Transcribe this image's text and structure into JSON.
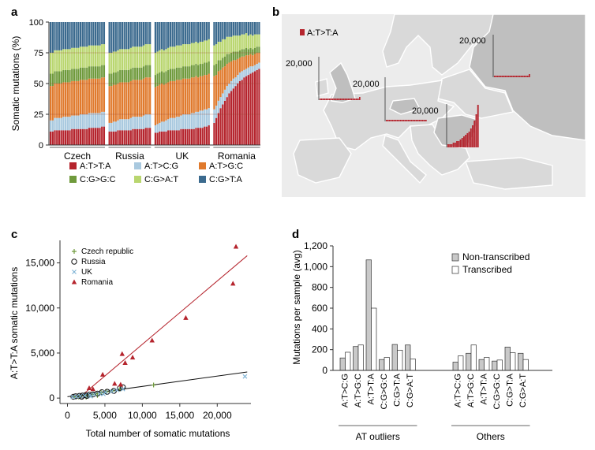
{
  "colors": {
    "AT_TA": "#b5242d",
    "AT_CG": "#a9c9df",
    "AT_GC": "#e07a2d",
    "CG_GC": "#6f9a3c",
    "CG_AT": "#b9d66f",
    "CG_TA": "#3b6a8e",
    "map_sea": "#ffffff",
    "map_land": "#d9d9d9",
    "map_highlight": "#bfbfbf"
  },
  "panels": {
    "a": "a",
    "b": "b",
    "c": "c",
    "d": "d"
  },
  "chart_data": [
    {
      "panel": "a",
      "type": "bar",
      "stacked": true,
      "ylabel": "Somatic mutations (%)",
      "ylim": [
        0,
        100
      ],
      "yticks": [
        "0",
        "25",
        "50",
        "75",
        "100"
      ],
      "groups": [
        {
          "label": "Czech",
          "n": 26
        },
        {
          "label": "Russia",
          "n": 20
        },
        {
          "label": "UK",
          "n": 26
        },
        {
          "label": "Romania",
          "n": 22
        }
      ],
      "series_order": [
        "A:T>T:A",
        "A:T>C:G",
        "A:T>G:C",
        "C:G>G:C",
        "C:G>A:T",
        "C:G>T:A"
      ],
      "legend": [
        {
          "label": "A:T>T:A",
          "color": "#b5242d"
        },
        {
          "label": "A:T>C:G",
          "color": "#a9c9df"
        },
        {
          "label": "A:T>G:C",
          "color": "#e07a2d"
        },
        {
          "label": "C:G>G:C",
          "color": "#6f9a3c"
        },
        {
          "label": "C:G>A:T",
          "color": "#b9d66f"
        },
        {
          "label": "C:G>T:A",
          "color": "#3b6a8e"
        }
      ],
      "samples": {
        "A:T>T:A": [
          11,
          11,
          12,
          12,
          12,
          12,
          12,
          12,
          12,
          12,
          13,
          13,
          13,
          13,
          13,
          13,
          13,
          13,
          14,
          14,
          14,
          14,
          14,
          14,
          15,
          15,
          11,
          11,
          11,
          11,
          12,
          12,
          12,
          12,
          12,
          12,
          12,
          13,
          13,
          13,
          13,
          13,
          13,
          14,
          14,
          14,
          10,
          10,
          11,
          11,
          11,
          11,
          12,
          12,
          12,
          12,
          12,
          12,
          13,
          13,
          13,
          13,
          13,
          13,
          13,
          14,
          14,
          14,
          14,
          15,
          15,
          16,
          18,
          22,
          26,
          30,
          33,
          36,
          39,
          42,
          44,
          46,
          48,
          50,
          52,
          53,
          55,
          56,
          57,
          58,
          59,
          60,
          61,
          62
        ],
        "A:T>C:G": [
          9,
          9,
          10,
          10,
          10,
          10,
          11,
          11,
          11,
          11,
          11,
          11,
          11,
          11,
          12,
          12,
          12,
          12,
          12,
          12,
          12,
          12,
          12,
          12,
          12,
          12,
          7,
          7,
          8,
          8,
          8,
          9,
          9,
          9,
          9,
          9,
          10,
          10,
          10,
          10,
          10,
          10,
          11,
          11,
          11,
          11,
          6,
          7,
          7,
          8,
          8,
          9,
          9,
          10,
          10,
          10,
          11,
          11,
          11,
          12,
          12,
          12,
          12,
          13,
          13,
          13,
          13,
          14,
          14,
          14,
          14,
          14,
          11,
          10,
          10,
          9,
          9,
          9,
          9,
          8,
          8,
          8,
          7,
          7,
          7,
          7,
          6,
          6,
          6,
          6,
          5,
          5,
          5,
          5
        ],
        "A:T>G:C": [
          28,
          28,
          28,
          28,
          28,
          28,
          28,
          28,
          28,
          28,
          28,
          28,
          28,
          28,
          28,
          28,
          28,
          28,
          28,
          28,
          28,
          28,
          28,
          28,
          28,
          28,
          30,
          30,
          30,
          30,
          30,
          30,
          30,
          30,
          30,
          30,
          30,
          30,
          30,
          30,
          30,
          30,
          30,
          30,
          30,
          30,
          31,
          31,
          31,
          31,
          30,
          30,
          30,
          30,
          30,
          30,
          30,
          30,
          29,
          29,
          29,
          29,
          29,
          29,
          29,
          29,
          28,
          28,
          28,
          28,
          28,
          28,
          27,
          25,
          24,
          22,
          21,
          19,
          18,
          17,
          16,
          15,
          14,
          13,
          12,
          12,
          11,
          11,
          10,
          10,
          9,
          9,
          9,
          8
        ],
        "C:G>G:C": [
          10,
          10,
          10,
          10,
          10,
          10,
          10,
          10,
          10,
          10,
          10,
          10,
          10,
          10,
          10,
          10,
          10,
          10,
          10,
          10,
          10,
          10,
          10,
          10,
          10,
          10,
          10,
          10,
          10,
          10,
          10,
          10,
          10,
          10,
          10,
          10,
          10,
          10,
          10,
          10,
          10,
          10,
          10,
          10,
          10,
          10,
          10,
          10,
          10,
          10,
          10,
          10,
          10,
          10,
          10,
          10,
          10,
          10,
          10,
          10,
          10,
          10,
          10,
          10,
          10,
          10,
          10,
          10,
          10,
          10,
          10,
          10,
          9,
          9,
          9,
          8,
          8,
          8,
          8,
          7,
          7,
          7,
          7,
          6,
          6,
          6,
          6,
          6,
          5,
          5,
          5,
          5,
          5,
          5
        ],
        "C:G>A:T": [
          17,
          17,
          17,
          17,
          17,
          17,
          17,
          17,
          17,
          17,
          17,
          17,
          17,
          17,
          17,
          17,
          17,
          17,
          17,
          17,
          17,
          17,
          17,
          17,
          17,
          17,
          17,
          17,
          17,
          17,
          17,
          17,
          17,
          17,
          17,
          17,
          17,
          17,
          17,
          17,
          17,
          17,
          17,
          17,
          17,
          17,
          18,
          18,
          18,
          18,
          18,
          18,
          18,
          18,
          18,
          18,
          18,
          18,
          18,
          18,
          18,
          18,
          18,
          18,
          18,
          18,
          18,
          18,
          18,
          18,
          18,
          18,
          16,
          16,
          15,
          15,
          15,
          14,
          14,
          14,
          13,
          13,
          13,
          13,
          12,
          12,
          12,
          12,
          11,
          11,
          11,
          11,
          10,
          10
        ]
      }
    },
    {
      "panel": "b",
      "type": "other",
      "legend": "A:T>T:A",
      "insets": [
        {
          "label": "20,000",
          "values": [
            1,
            1,
            1,
            1,
            1,
            1,
            1,
            1,
            1,
            1,
            1,
            1,
            1,
            1,
            1,
            1,
            1,
            1,
            1,
            1,
            1,
            1,
            1,
            1,
            1,
            2
          ]
        },
        {
          "label": "20,000",
          "values": [
            1,
            1,
            1,
            1,
            1,
            1,
            1,
            1,
            1,
            1,
            1,
            1,
            1,
            1,
            1,
            1,
            1,
            1,
            1,
            1,
            1,
            1,
            1,
            1,
            1,
            1
          ]
        },
        {
          "label": "20,000",
          "values": [
            1,
            1,
            1,
            1,
            1,
            1,
            1,
            1,
            1,
            1,
            1,
            1,
            1,
            1,
            1,
            1,
            1,
            1,
            1,
            1,
            1,
            1,
            2
          ]
        },
        {
          "label": "20,000",
          "values": [
            2,
            2,
            2,
            3,
            3,
            4,
            4,
            5,
            6,
            7,
            8,
            9,
            10,
            12,
            14,
            17,
            21,
            27
          ]
        }
      ]
    },
    {
      "panel": "c",
      "type": "scatter",
      "xlabel": "Total number of somatic mutations",
      "ylabel": "A:T>T:A somatic mutations",
      "xlim": [
        -1000,
        24500
      ],
      "ylim": [
        -600,
        17500
      ],
      "xticks": [
        "0",
        "5,000",
        "10,000",
        "15,000",
        "20,000"
      ],
      "yticks": [
        "0",
        "5,000",
        "10,000",
        "15,000"
      ],
      "legend": [
        {
          "label": "Czech republic",
          "marker": "plus",
          "color": "#6f9a3c"
        },
        {
          "label": "Russia",
          "marker": "circle",
          "color": "#111111"
        },
        {
          "label": "UK",
          "marker": "cross",
          "color": "#7fb3d5"
        },
        {
          "label": "Romania",
          "marker": "triangle",
          "color": "#b5242d"
        }
      ],
      "series": [
        {
          "name": "Czech republic",
          "points": [
            [
              900,
              150
            ],
            [
              1300,
              200
            ],
            [
              1800,
              250
            ],
            [
              2200,
              300
            ],
            [
              2800,
              350
            ],
            [
              3300,
              400
            ],
            [
              3800,
              500
            ],
            [
              4500,
              600
            ],
            [
              5200,
              700
            ],
            [
              6000,
              800
            ],
            [
              7000,
              1000
            ],
            [
              11500,
              1450
            ],
            [
              2500,
              100
            ],
            [
              4000,
              300
            ],
            [
              1500,
              120
            ]
          ]
        },
        {
          "name": "Russia",
          "points": [
            [
              800,
              150
            ],
            [
              1100,
              200
            ],
            [
              1600,
              250
            ],
            [
              2000,
              280
            ],
            [
              2400,
              320
            ],
            [
              2900,
              380
            ],
            [
              3400,
              400
            ],
            [
              4000,
              500
            ],
            [
              4600,
              650
            ],
            [
              5300,
              700
            ],
            [
              6200,
              800
            ],
            [
              7000,
              1100
            ],
            [
              7400,
              1200
            ],
            [
              1900,
              150
            ],
            [
              2600,
              250
            ]
          ]
        },
        {
          "name": "UK",
          "points": [
            [
              700,
              120
            ],
            [
              1200,
              180
            ],
            [
              1700,
              220
            ],
            [
              2300,
              280
            ],
            [
              3000,
              350
            ],
            [
              3600,
              420
            ],
            [
              4300,
              500
            ],
            [
              5100,
              650
            ],
            [
              5900,
              750
            ],
            [
              6600,
              900
            ],
            [
              7400,
              1000
            ],
            [
              23700,
              2400
            ],
            [
              3100,
              200
            ],
            [
              4800,
              450
            ]
          ]
        },
        {
          "name": "Romania",
          "points": [
            [
              2900,
              1100
            ],
            [
              3400,
              1000
            ],
            [
              4700,
              2600
            ],
            [
              6300,
              1600
            ],
            [
              7100,
              1500
            ],
            [
              7300,
              4900
            ],
            [
              7700,
              3900
            ],
            [
              8700,
              4500
            ],
            [
              11300,
              6400
            ],
            [
              15800,
              8900
            ],
            [
              22100,
              12700
            ],
            [
              22500,
              16800
            ]
          ]
        }
      ],
      "fits": [
        {
          "color": "#b5242d",
          "x0": 1500,
          "y0": 0,
          "x1": 24000,
          "y1": 15800
        },
        {
          "color": "#111111",
          "x0": 0,
          "y0": 150,
          "x1": 24000,
          "y1": 2900
        }
      ]
    },
    {
      "panel": "d",
      "type": "bar",
      "ylabel": "Mutations per sample (avg)",
      "ylim": [
        0,
        1200
      ],
      "yticks": [
        "0",
        "200",
        "400",
        "600",
        "800",
        "1,000",
        "1,200"
      ],
      "series_labels": [
        "Non-transcribed",
        "Transcribed"
      ],
      "groups": [
        {
          "label": "AT outliers",
          "categories": [
            "A:T>C:G",
            "A:T>G:C",
            "A:T>T:A",
            "C:G>G:C",
            "C:G>T:A",
            "C:G>A:T"
          ],
          "nontranscribed": [
            120,
            230,
            1065,
            105,
            250,
            245
          ],
          "transcribed": [
            175,
            245,
            600,
            125,
            195,
            110
          ]
        },
        {
          "label": "Others",
          "categories": [
            "A:T>C:G",
            "A:T>G:C",
            "A:T>T:A",
            "C:G>G:C",
            "C:G>T:A",
            "C:G>A:T"
          ],
          "nontranscribed": [
            80,
            165,
            105,
            90,
            225,
            165
          ],
          "transcribed": [
            140,
            245,
            125,
            100,
            170,
            105
          ]
        }
      ]
    }
  ]
}
